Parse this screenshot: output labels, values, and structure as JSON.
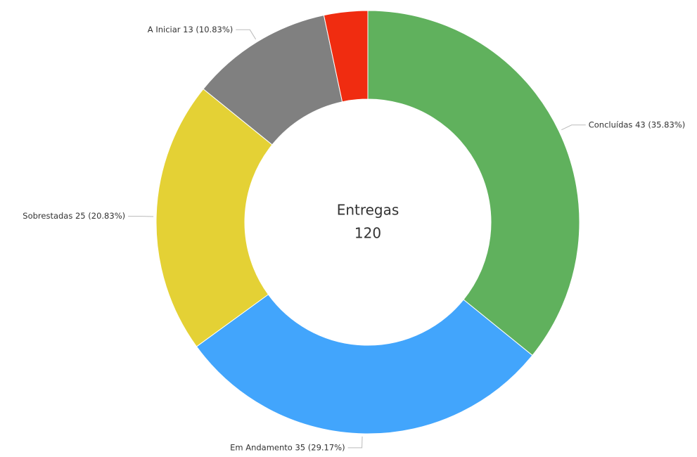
{
  "chart_data": {
    "type": "donut",
    "values": [
      43,
      35,
      25,
      13,
      4
    ],
    "value_labels": [
      "Concluídas 43 (35.83%)",
      "Em Andamento 35 (29.17%)",
      "Sobrestadas 25 (20.83%)",
      "A Iniciar 13 (10.83%)",
      null
    ],
    "colors": [
      "#60b15d",
      "#42a5fc",
      "#e4d135",
      "#808080",
      "#f02c10"
    ],
    "center_title": "Entregas",
    "center_value": 120
  }
}
